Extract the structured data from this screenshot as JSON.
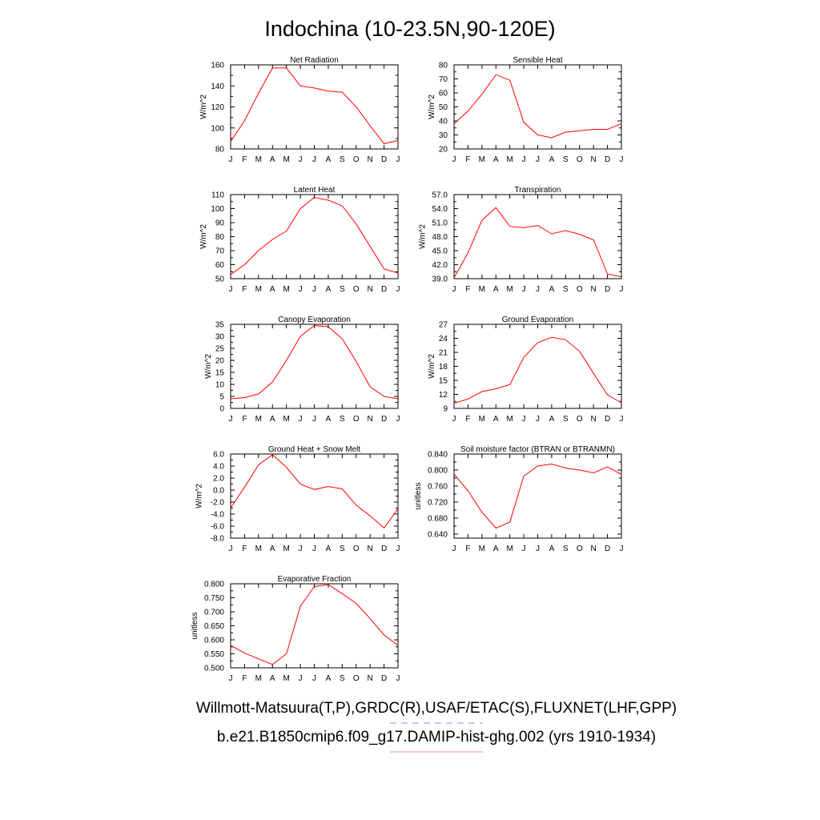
{
  "title": "Indochina (10-23.5N,90-120E)",
  "colors": {
    "series": "#ff0000",
    "obs_dash": "#8a8aff",
    "model_line": "#ff8a8a"
  },
  "legend": {
    "obs_label": "Willmott-Matsuura(T,P),GRDC(R),USAF/ETAC(S),FLUXNET(LHF,GPP)",
    "model_label": "b.e21.B1850cmip6.f09_g17.DAMIP-hist-ghg.002 (yrs 1910-1934)"
  },
  "chart_data": [
    {
      "type": "line",
      "title": "Net Radiation",
      "ylabel": "W/m^2",
      "x": [
        "J",
        "F",
        "M",
        "A",
        "M",
        "J",
        "J",
        "A",
        "S",
        "O",
        "N",
        "D",
        "J"
      ],
      "ylim": [
        80,
        160
      ],
      "yticks": [
        "80",
        "100",
        "120",
        "140",
        "160"
      ],
      "yticks_values": [
        80,
        100,
        120,
        140,
        160
      ],
      "series": [
        {
          "values": [
            87,
            107,
            133,
            157,
            157,
            140,
            138,
            135,
            134,
            120,
            102,
            85,
            88
          ]
        }
      ]
    },
    {
      "type": "line",
      "title": "Sensible Heat",
      "ylabel": "W/m^2",
      "x": [
        "J",
        "F",
        "M",
        "A",
        "M",
        "J",
        "J",
        "A",
        "S",
        "O",
        "N",
        "D",
        "J"
      ],
      "ylim": [
        20,
        80
      ],
      "yticks": [
        "20",
        "30",
        "40",
        "50",
        "60",
        "70",
        "80"
      ],
      "yticks_values": [
        20,
        30,
        40,
        50,
        60,
        70,
        80
      ],
      "series": [
        {
          "values": [
            38,
            47,
            59,
            73,
            69,
            39,
            30,
            28,
            32,
            33,
            34,
            34,
            38
          ]
        }
      ]
    },
    {
      "type": "line",
      "title": "Latent Heat",
      "ylabel": "W/m^2",
      "x": [
        "J",
        "F",
        "M",
        "A",
        "M",
        "J",
        "J",
        "A",
        "S",
        "O",
        "N",
        "D",
        "J"
      ],
      "ylim": [
        50,
        110
      ],
      "yticks": [
        "50",
        "60",
        "70",
        "80",
        "90",
        "100",
        "110"
      ],
      "yticks_values": [
        50,
        60,
        70,
        80,
        90,
        100,
        110
      ],
      "series": [
        {
          "values": [
            53,
            60,
            70,
            78,
            84,
            100,
            108,
            106,
            102,
            89,
            73,
            57,
            54
          ]
        }
      ]
    },
    {
      "type": "line",
      "title": "Transpiration",
      "ylabel": "W/m^2",
      "x": [
        "J",
        "F",
        "M",
        "A",
        "M",
        "J",
        "J",
        "A",
        "S",
        "O",
        "N",
        "D",
        "J"
      ],
      "ylim": [
        39,
        57
      ],
      "yticks": [
        "39.0",
        "42.0",
        "45.0",
        "48.0",
        "51.0",
        "54.0",
        "57.0"
      ],
      "yticks_values": [
        39,
        42,
        45,
        48,
        51,
        54,
        57
      ],
      "series": [
        {
          "values": [
            39.2,
            44.5,
            51.5,
            54.2,
            50.2,
            49.9,
            50.4,
            48.6,
            49.3,
            48.5,
            47.3,
            40.0,
            39.4
          ]
        }
      ]
    },
    {
      "type": "line",
      "title": "Canopy Evaporation",
      "ylabel": "W/m^2",
      "x": [
        "J",
        "F",
        "M",
        "A",
        "M",
        "J",
        "J",
        "A",
        "S",
        "O",
        "N",
        "D",
        "J"
      ],
      "ylim": [
        0,
        35
      ],
      "yticks": [
        "0",
        "5",
        "10",
        "15",
        "20",
        "25",
        "30",
        "35"
      ],
      "yticks_values": [
        0,
        5,
        10,
        15,
        20,
        25,
        30,
        35
      ],
      "series": [
        {
          "values": [
            4,
            4.5,
            6,
            11,
            20,
            30,
            34.5,
            34,
            29,
            19.5,
            9,
            5,
            4
          ]
        }
      ]
    },
    {
      "type": "line",
      "title": "Ground Evaporation",
      "ylabel": "W/m^2",
      "x": [
        "J",
        "F",
        "M",
        "A",
        "M",
        "J",
        "J",
        "A",
        "S",
        "O",
        "N",
        "D",
        "J"
      ],
      "ylim": [
        9,
        27
      ],
      "yticks": [
        "9",
        "12",
        "15",
        "18",
        "21",
        "24",
        "27"
      ],
      "yticks_values": [
        9,
        12,
        15,
        18,
        21,
        24,
        27
      ],
      "series": [
        {
          "values": [
            10.1,
            11,
            12.6,
            13.2,
            14.1,
            19.9,
            23.1,
            24.2,
            23.7,
            21.2,
            16.5,
            11.9,
            10.2
          ]
        }
      ]
    },
    {
      "type": "line",
      "title": "Ground Heat + Snow Melt",
      "ylabel": "W/m^2",
      "x": [
        "J",
        "F",
        "M",
        "A",
        "M",
        "J",
        "J",
        "A",
        "S",
        "O",
        "N",
        "D",
        "J"
      ],
      "ylim": [
        -8,
        6
      ],
      "yticks": [
        "-8.0",
        "-6.0",
        "-4.0",
        "-2.0",
        "0.0",
        "2.0",
        "4.0",
        "6.0"
      ],
      "yticks_values": [
        -8,
        -6,
        -4,
        -2,
        0,
        2,
        4,
        6
      ],
      "series": [
        {
          "values": [
            -3,
            0.5,
            4.2,
            5.9,
            3.8,
            1,
            0.1,
            0.6,
            0.2,
            -2.5,
            -4.3,
            -6.3,
            -3.1
          ]
        }
      ]
    },
    {
      "type": "line",
      "title": "Soil moisture factor (BTRAN or BTRANMN)",
      "ylabel": "unitless",
      "x": [
        "J",
        "F",
        "M",
        "A",
        "M",
        "J",
        "J",
        "A",
        "S",
        "O",
        "N",
        "D",
        "J"
      ],
      "ylim": [
        0.63,
        0.84
      ],
      "yticks": [
        "0.640",
        "0.680",
        "0.720",
        "0.760",
        "0.800",
        "0.840"
      ],
      "yticks_values": [
        0.64,
        0.68,
        0.72,
        0.76,
        0.8,
        0.84
      ],
      "series": [
        {
          "values": [
            0.79,
            0.748,
            0.695,
            0.655,
            0.67,
            0.785,
            0.81,
            0.815,
            0.805,
            0.8,
            0.793,
            0.808,
            0.789
          ]
        }
      ]
    },
    {
      "type": "line",
      "title": "Evaporative Fraction",
      "ylabel": "unitless",
      "x": [
        "J",
        "F",
        "M",
        "A",
        "M",
        "J",
        "J",
        "A",
        "S",
        "O",
        "N",
        "D",
        "J"
      ],
      "ylim": [
        0.5,
        0.8
      ],
      "yticks": [
        "0.500",
        "0.550",
        "0.600",
        "0.650",
        "0.700",
        "0.750",
        "0.800"
      ],
      "yticks_values": [
        0.5,
        0.55,
        0.6,
        0.65,
        0.7,
        0.75,
        0.8
      ],
      "series": [
        {
          "values": [
            0.58,
            0.553,
            0.532,
            0.512,
            0.55,
            0.72,
            0.79,
            0.797,
            0.765,
            0.73,
            0.676,
            0.617,
            0.58
          ]
        }
      ]
    }
  ]
}
